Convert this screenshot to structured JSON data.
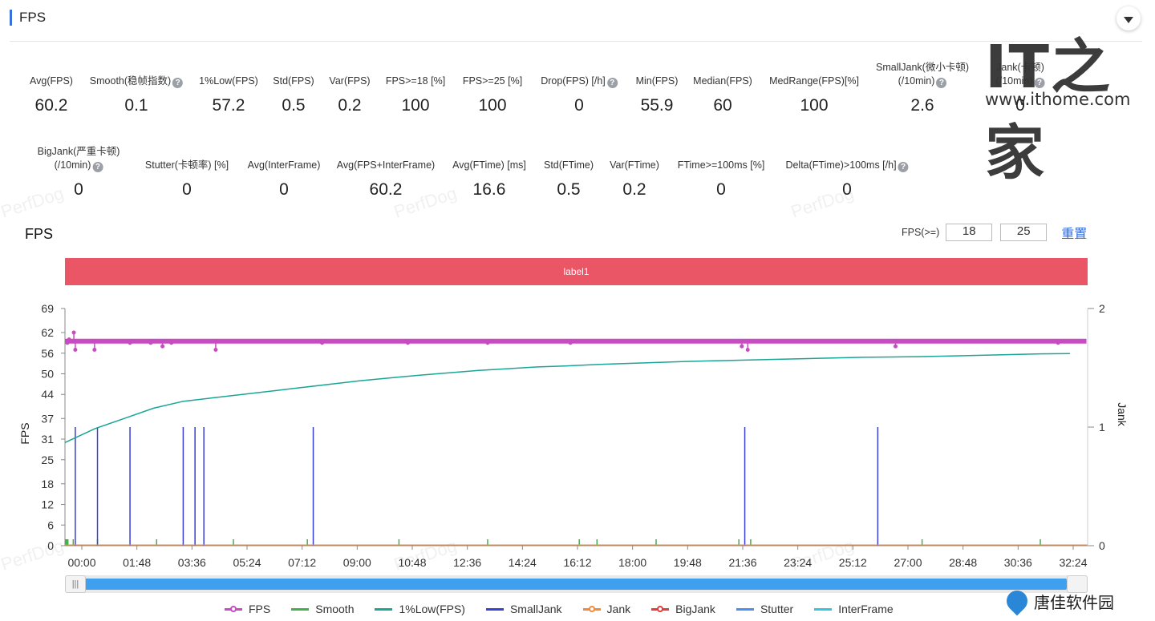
{
  "header": {
    "title": "FPS"
  },
  "metrics_row1": [
    {
      "label": "Avg(FPS)",
      "label2": "",
      "value": "60.2",
      "help": false
    },
    {
      "label": "Smooth(稳帧指数)",
      "label2": "",
      "value": "0.1",
      "help": true
    },
    {
      "label": "1%Low(FPS)",
      "label2": "",
      "value": "57.2",
      "help": false
    },
    {
      "label": "Std(FPS)",
      "label2": "",
      "value": "0.5",
      "help": false
    },
    {
      "label": "Var(FPS)",
      "label2": "",
      "value": "0.2",
      "help": false
    },
    {
      "label": "FPS>=18 [%]",
      "label2": "",
      "value": "100",
      "help": false
    },
    {
      "label": "FPS>=25 [%]",
      "label2": "",
      "value": "100",
      "help": false
    },
    {
      "label": "Drop(FPS) [/h]",
      "label2": "",
      "value": "0",
      "help": true
    },
    {
      "label": "Min(FPS)",
      "label2": "",
      "value": "55.9",
      "help": false
    },
    {
      "label": "Median(FPS)",
      "label2": "",
      "value": "60",
      "help": false
    },
    {
      "label": "MedRange(FPS)[%]",
      "label2": "",
      "value": "100",
      "help": false
    },
    {
      "label": "SmallJank(微小卡顿)",
      "label2": "(/10min)",
      "value": "2.6",
      "help": true
    },
    {
      "label": "Jank(卡顿)",
      "label2": "(/10min)",
      "value": "0",
      "help": true
    }
  ],
  "metrics_row2": [
    {
      "label": "BigJank(严重卡顿)",
      "label2": "(/10min)",
      "value": "0",
      "help": true
    },
    {
      "label": "Stutter(卡顿率) [%]",
      "label2": "",
      "value": "0",
      "help": false
    },
    {
      "label": "Avg(InterFrame)",
      "label2": "",
      "value": "0",
      "help": false
    },
    {
      "label": "Avg(FPS+InterFrame)",
      "label2": "",
      "value": "60.2",
      "help": false
    },
    {
      "label": "Avg(FTime) [ms]",
      "label2": "",
      "value": "16.6",
      "help": false
    },
    {
      "label": "Std(FTime)",
      "label2": "",
      "value": "0.5",
      "help": false
    },
    {
      "label": "Var(FTime)",
      "label2": "",
      "value": "0.2",
      "help": false
    },
    {
      "label": "FTime>=100ms [%]",
      "label2": "",
      "value": "0",
      "help": false
    },
    {
      "label": "Delta(FTime)>100ms [/h]",
      "label2": "",
      "value": "0",
      "help": true
    }
  ],
  "watermark": "PerfDog",
  "logo_it": {
    "text": "IT之家",
    "url": "www.ithome.com"
  },
  "chart_title": "FPS",
  "fps_threshold": {
    "label": "FPS(>=)",
    "value1": "18",
    "value2": "25",
    "reset_label": "重置"
  },
  "label_band": "label1",
  "chart_data": {
    "type": "line",
    "ylabel": "FPS",
    "y2label": "Jank",
    "y_ticks": [
      0,
      6,
      12,
      18,
      25,
      31,
      37,
      44,
      50,
      56,
      62,
      69
    ],
    "ylim": [
      0,
      69
    ],
    "y2_ticks": [
      0,
      1,
      2
    ],
    "y2lim": [
      0,
      2
    ],
    "x_ticks": [
      "00:00",
      "01:48",
      "03:36",
      "05:24",
      "07:12",
      "09:00",
      "10:48",
      "12:36",
      "14:24",
      "16:12",
      "18:00",
      "19:48",
      "21:36",
      "23:24",
      "25:12",
      "27:00",
      "28:48",
      "30:36",
      "32:24"
    ],
    "x_range_seconds": [
      0,
      2060
    ],
    "grid": false,
    "series": [
      {
        "name": "FPS",
        "color": "#c84bc1",
        "baseline": 60,
        "dips": [
          [
            8,
            59
          ],
          [
            14,
            60
          ],
          [
            30,
            62
          ],
          [
            35,
            57
          ],
          [
            100,
            57
          ],
          [
            220,
            59
          ],
          [
            290,
            59
          ],
          [
            330,
            58
          ],
          [
            360,
            59
          ],
          [
            510,
            57
          ],
          [
            870,
            59
          ],
          [
            1160,
            59
          ],
          [
            1430,
            59
          ],
          [
            1710,
            59
          ],
          [
            2290,
            58
          ],
          [
            2310,
            57
          ],
          [
            2810,
            58
          ],
          [
            3360,
            59
          ]
        ]
      },
      {
        "name": "Smooth",
        "color": "#43b049",
        "spikes": [
          2,
          4,
          6,
          10,
          28,
          110,
          310,
          570,
          820,
          1130,
          1430,
          1740,
          1800,
          2000,
          2280,
          2320,
          2900,
          3300
        ]
      },
      {
        "name": "1%Low(FPS)",
        "color": "#1aa596",
        "points": [
          [
            0,
            30
          ],
          [
            100,
            34
          ],
          [
            200,
            37
          ],
          [
            300,
            40
          ],
          [
            400,
            42
          ],
          [
            500,
            43
          ],
          [
            600,
            44
          ],
          [
            700,
            45
          ],
          [
            800,
            46
          ],
          [
            900,
            47
          ],
          [
            1000,
            48
          ],
          [
            1100,
            48.8
          ],
          [
            1200,
            49.6
          ],
          [
            1300,
            50.3
          ],
          [
            1400,
            51
          ],
          [
            1500,
            51.5
          ],
          [
            1600,
            52
          ],
          [
            1700,
            52.3
          ],
          [
            1800,
            52.7
          ],
          [
            1900,
            53
          ],
          [
            2000,
            53.3
          ],
          [
            2100,
            53.6
          ],
          [
            2200,
            53.8
          ],
          [
            2300,
            54
          ],
          [
            2400,
            54.2
          ],
          [
            2500,
            54.4
          ],
          [
            2600,
            54.6
          ],
          [
            2700,
            54.8
          ],
          [
            2800,
            54.9
          ],
          [
            2900,
            55
          ],
          [
            3000,
            55.2
          ],
          [
            3100,
            55.4
          ],
          [
            3200,
            55.6
          ],
          [
            3300,
            55.8
          ],
          [
            3400,
            55.9
          ]
        ]
      },
      {
        "name": "SmallJank",
        "color": "#3a3fd8",
        "spikes": [
          35,
          110,
          220,
          400,
          440,
          470,
          840,
          2300,
          2750
        ]
      },
      {
        "name": "Jank",
        "color": "#f5893a",
        "values": []
      },
      {
        "name": "BigJank",
        "color": "#e53b3b",
        "values": []
      },
      {
        "name": "Stutter",
        "color": "#4a8ef0",
        "values": []
      },
      {
        "name": "InterFrame",
        "color": "#31c6de",
        "values": []
      }
    ]
  },
  "legend": [
    {
      "name": "FPS",
      "color": "#c84bc1",
      "marker": true
    },
    {
      "name": "Smooth",
      "color": "#43b049",
      "marker": false
    },
    {
      "name": "1%Low(FPS)",
      "color": "#1aa596",
      "marker": false
    },
    {
      "name": "SmallJank",
      "color": "#3a3fd8",
      "marker": false
    },
    {
      "name": "Jank",
      "color": "#f5893a",
      "marker": true
    },
    {
      "name": "BigJank",
      "color": "#e53b3b",
      "marker": true
    },
    {
      "name": "Stutter",
      "color": "#4a8ef0",
      "marker": false
    },
    {
      "name": "InterFrame",
      "color": "#31c6de",
      "marker": false
    }
  ],
  "logo_tj": {
    "text": "唐佳软件园"
  }
}
